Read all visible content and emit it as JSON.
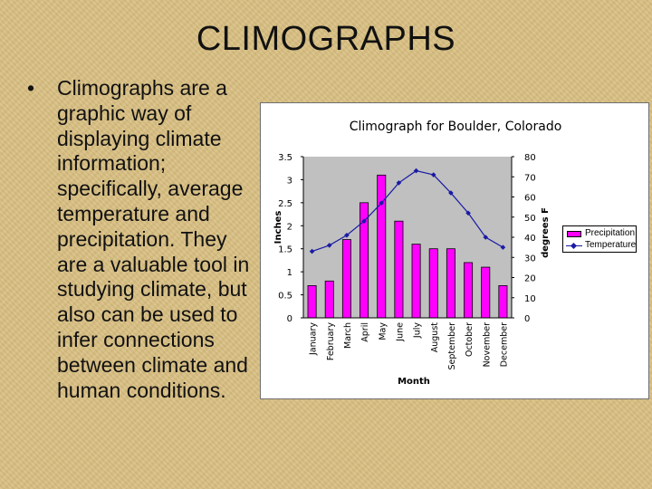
{
  "slide": {
    "title": "CLIMOGRAPHS",
    "bullet_marker": "•",
    "bullet_text": "Climographs are a graphic way of displaying climate information; specifically, average temperature and precipitation. They are a valuable tool in studying climate, but also can be used to infer connections between climate and human conditions."
  },
  "colors": {
    "plot_background": "#c0c0c0",
    "precipitation_bar": "#ff00ff",
    "temperature_line": "#1a1aa6"
  },
  "chart_data": {
    "type": "bar",
    "title": "Climograph for Boulder, Colorado",
    "xlabel": "Month",
    "ylabel": "Inches",
    "y2label": "degrees F",
    "categories": [
      "January",
      "February",
      "March",
      "April",
      "May",
      "June",
      "July",
      "August",
      "September",
      "October",
      "November",
      "December"
    ],
    "ylim": [
      0,
      3.5
    ],
    "y_ticks": [
      "0",
      "0.5",
      "1",
      "1.5",
      "2",
      "2.5",
      "3",
      "3.5"
    ],
    "y2lim": [
      0,
      80
    ],
    "y2_ticks": [
      "0",
      "10",
      "20",
      "30",
      "40",
      "50",
      "60",
      "70",
      "80"
    ],
    "series": [
      {
        "name": "Precipitation",
        "type": "bar",
        "axis": "left",
        "values": [
          0.7,
          0.8,
          1.7,
          2.5,
          3.1,
          2.1,
          1.6,
          1.5,
          1.5,
          1.2,
          1.1,
          0.7
        ]
      },
      {
        "name": "Temperature",
        "type": "line",
        "axis": "right",
        "values": [
          33,
          36,
          41,
          48,
          57,
          67,
          73,
          71,
          62,
          52,
          40,
          35
        ]
      }
    ],
    "legend_position": "right"
  }
}
